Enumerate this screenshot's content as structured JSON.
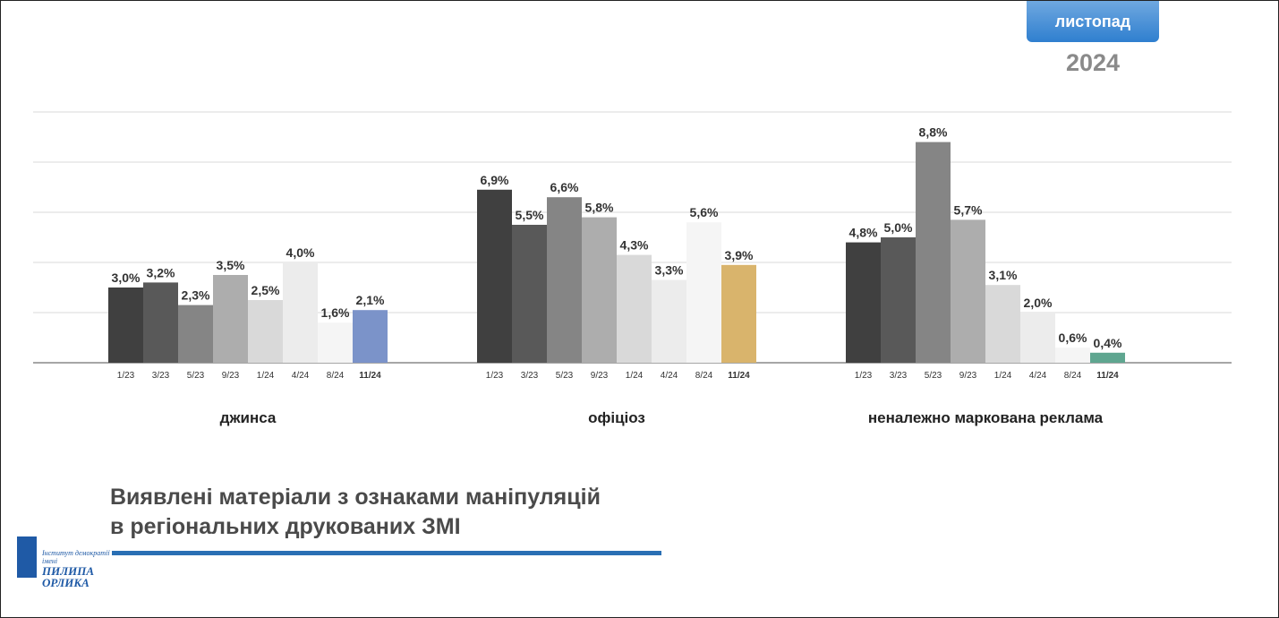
{
  "header": {
    "month": "листопад",
    "year": "2024"
  },
  "title": {
    "line1": "Виявлені матеріали з ознаками маніпуляцій",
    "line2": "в регіональних друкованих ЗМІ"
  },
  "logo": {
    "line1": "Інститут демократії",
    "line2": "імені",
    "line3": "ПИЛИПА",
    "line4": "ОРЛИКА"
  },
  "colors": {
    "grid": "#d9d9d9",
    "axis": "#888888",
    "accent_jeans": "#7b93c9",
    "accent_official": "#d9b46c",
    "accent_ads": "#5fa690"
  },
  "chart_data": {
    "type": "bar",
    "ylim": [
      0,
      10
    ],
    "gridlines": [
      2,
      4,
      6,
      8,
      10
    ],
    "grid": true,
    "categories": [
      "1/23",
      "3/23",
      "5/23",
      "9/23",
      "1/24",
      "4/24",
      "8/24",
      "11/24"
    ],
    "groups": [
      {
        "label": "джинса",
        "values": [
          3.0,
          3.2,
          2.3,
          3.5,
          2.5,
          4.0,
          1.6,
          2.1
        ],
        "value_labels": [
          "3,0%",
          "3,2%",
          "2,3%",
          "3,5%",
          "2,5%",
          "4,0%",
          "1,6%",
          "2,1%"
        ]
      },
      {
        "label": "офіціоз",
        "values": [
          6.9,
          5.5,
          6.6,
          5.8,
          4.3,
          3.3,
          5.6,
          3.9
        ],
        "value_labels": [
          "6,9%",
          "5,5%",
          "6,6%",
          "5,8%",
          "4,3%",
          "3,3%",
          "5,6%",
          "3,9%"
        ]
      },
      {
        "label": "неналежно маркована реклама",
        "values": [
          4.8,
          5.0,
          8.8,
          5.7,
          3.1,
          2.0,
          0.6,
          0.4
        ],
        "value_labels": [
          "4,8%",
          "5,0%",
          "8,8%",
          "5,7%",
          "3,1%",
          "2,0%",
          "0,6%",
          "0,4%"
        ]
      }
    ],
    "bar_colors": [
      "#404040",
      "#595959",
      "#858585",
      "#adadad",
      "#d9d9d9",
      "#ececec",
      "#f5f5f5"
    ]
  }
}
